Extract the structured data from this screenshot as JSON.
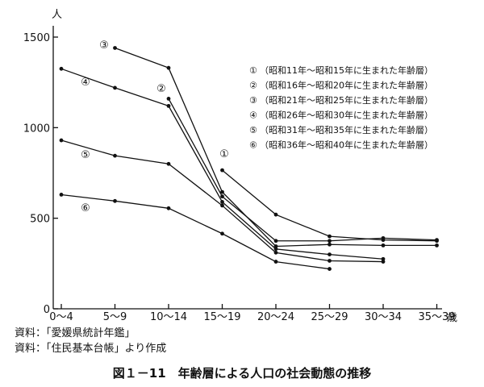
{
  "chart_data": {
    "type": "line",
    "title": "図１－11　年齢層による人口の社会動態の推移",
    "ylabel": "人",
    "xunit": "歳",
    "categories": [
      "0～4",
      "5～9",
      "10～14",
      "15～19",
      "20～24",
      "25～29",
      "30～34",
      "35～39"
    ],
    "ylim": [
      0,
      1500
    ],
    "yticks": [
      0,
      500,
      1000,
      1500
    ],
    "series": [
      {
        "marker": "①",
        "name": "（昭和11年～昭和15年に生まれた年齢層）",
        "values": [
          null,
          null,
          null,
          765,
          520,
          400,
          380,
          375
        ]
      },
      {
        "marker": "②",
        "name": "（昭和16年～昭和20年に生まれた年齢層）",
        "values": [
          null,
          null,
          1160,
          620,
          375,
          375,
          390,
          380
        ]
      },
      {
        "marker": "③",
        "name": "（昭和21年～昭和25年に生まれた年齢層）",
        "values": [
          null,
          1440,
          1330,
          645,
          345,
          355,
          350,
          350
        ]
      },
      {
        "marker": "④",
        "name": "（昭和26年～昭和30年に生まれた年齢層）",
        "values": [
          1325,
          1220,
          1120,
          590,
          330,
          300,
          275,
          null
        ]
      },
      {
        "marker": "⑤",
        "name": "（昭和31年～昭和35年に生まれた年齢層）",
        "values": [
          930,
          845,
          800,
          570,
          310,
          265,
          260,
          null
        ]
      },
      {
        "marker": "⑥",
        "name": "（昭和36年～昭和40年に生まれた年齢層）",
        "values": [
          630,
          595,
          555,
          415,
          260,
          220,
          null,
          null
        ]
      }
    ],
    "grid": false,
    "legend_position": "top-right",
    "sources": [
      "資料：「愛媛県統計年鑑」",
      "資料：「住民基本台帳」より作成"
    ]
  }
}
